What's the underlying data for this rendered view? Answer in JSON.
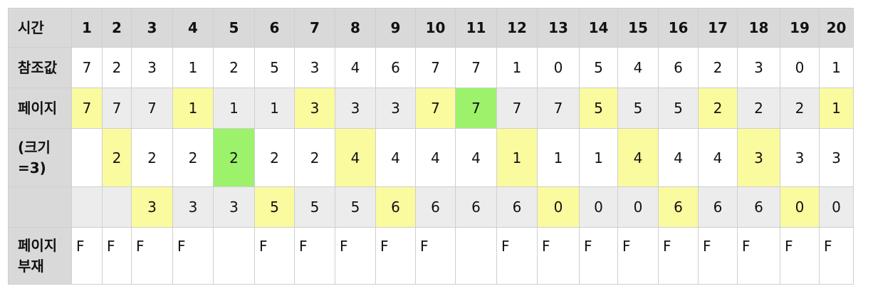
{
  "labels": {
    "time": "시간",
    "ref": "참조값",
    "frames": [
      "페이지",
      "(크기\n=3)",
      ""
    ],
    "fault": "페이지\n부재"
  },
  "time": [
    "1",
    "2",
    "3",
    "4",
    "5",
    "6",
    "7",
    "8",
    "9",
    "10",
    "11",
    "12",
    "13",
    "14",
    "15",
    "16",
    "17",
    "18",
    "19",
    "20"
  ],
  "ref": [
    "7",
    "2",
    "3",
    "1",
    "2",
    "5",
    "3",
    "4",
    "6",
    "7",
    "7",
    "1",
    "0",
    "5",
    "4",
    "6",
    "2",
    "3",
    "0",
    "1"
  ],
  "frame_rows": [
    [
      "7",
      "7",
      "7",
      "1",
      "1",
      "1",
      "3",
      "3",
      "3",
      "7",
      "7",
      "7",
      "7",
      "5",
      "5",
      "5",
      "2",
      "2",
      "2",
      "1"
    ],
    [
      "",
      "2",
      "2",
      "2",
      "2",
      "2",
      "2",
      "4",
      "4",
      "4",
      "4",
      "1",
      "1",
      "1",
      "4",
      "4",
      "4",
      "3",
      "3",
      "3"
    ],
    [
      "",
      "",
      "3",
      "3",
      "3",
      "5",
      "5",
      "5",
      "6",
      "6",
      "6",
      "6",
      "0",
      "0",
      "0",
      "6",
      "6",
      "6",
      "0",
      "0"
    ]
  ],
  "frame_highlight": [
    [
      "y",
      "",
      "",
      "y",
      "",
      "",
      "y",
      "",
      "",
      "y",
      "g",
      "",
      "",
      "y",
      "",
      "",
      "y",
      "",
      "",
      "y"
    ],
    [
      "",
      "y",
      "",
      "",
      "g",
      "",
      "",
      "y",
      "",
      "",
      "",
      "y",
      "",
      "",
      "y",
      "",
      "",
      "y",
      "",
      ""
    ],
    [
      "",
      "",
      "y",
      "",
      "",
      "y",
      "",
      "",
      "y",
      "",
      "",
      "",
      "y",
      "",
      "",
      "y",
      "",
      "",
      "y",
      ""
    ]
  ],
  "fault": [
    "F",
    "F",
    "F",
    "F",
    "",
    "F",
    "F",
    "F",
    "F",
    "F",
    "",
    "F",
    "F",
    "F",
    "F",
    "F",
    "F",
    "F",
    "F",
    "F"
  ],
  "colors": {
    "new_page": "#fafa9e",
    "hit": "#9cf26a",
    "header": "#d9d9d9",
    "alt_row": "#ececec"
  }
}
